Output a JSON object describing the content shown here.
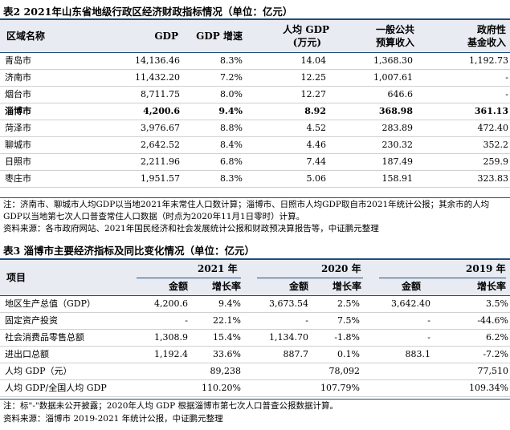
{
  "table1": {
    "title": "表2 2021年山东省地级行政区经济财政指标情况（单位：亿元）",
    "headers": {
      "region": "区域名称",
      "gdp": "GDP",
      "gdp_growth": "GDP 增速",
      "per_capita_line1": "人均 GDP",
      "per_capita_line2": "(万元)",
      "public_budget_line1": "一般公共",
      "public_budget_line2": "预算收入",
      "fund_line1": "政府性",
      "fund_line2": "基金收入"
    },
    "rows": [
      {
        "name": "青岛市",
        "gdp": "14,136.46",
        "growth": "8.3%",
        "per_capita": "14.04",
        "budget": "1,368.30",
        "fund": "1,192.73"
      },
      {
        "name": "济南市",
        "gdp": "11,432.20",
        "growth": "7.2%",
        "per_capita": "12.25",
        "budget": "1,007.61",
        "fund": "-"
      },
      {
        "name": "烟台市",
        "gdp": "8,711.75",
        "growth": "8.0%",
        "per_capita": "12.27",
        "budget": "646.6",
        "fund": "-"
      },
      {
        "name": "淄博市",
        "gdp": "4,200.6",
        "growth": "9.4%",
        "per_capita": "8.92",
        "budget": "368.98",
        "fund": "361.13"
      },
      {
        "name": "菏泽市",
        "gdp": "3,976.67",
        "growth": "8.8%",
        "per_capita": "4.52",
        "budget": "283.89",
        "fund": "472.40"
      },
      {
        "name": "聊城市",
        "gdp": "2,642.52",
        "growth": "8.4%",
        "per_capita": "4.46",
        "budget": "230.32",
        "fund": "352.2"
      },
      {
        "name": "日照市",
        "gdp": "2,211.96",
        "growth": "6.8%",
        "per_capita": "7.44",
        "budget": "187.49",
        "fund": "259.9"
      },
      {
        "name": "枣庄市",
        "gdp": "1,951.57",
        "growth": "8.3%",
        "per_capita": "5.06",
        "budget": "158.91",
        "fund": "323.83"
      }
    ],
    "note": "注：济南市、聊城市人均GDP以当地2021年末常住人口数计算；淄博市、日照市人均GDP取自市2021年统计公报；其余市的人均GDP以当地第七次人口普查常住人口数据（时点为2020年11月1日零时）计算。",
    "source": "资料来源：各市政府网站、2021年国民经济和社会发展统计公报和财政预决算报告等，中证鹏元整理"
  },
  "table2": {
    "title": "表3 淄博市主要经济指标及同比变化情况（单位：亿元）",
    "headers": {
      "item": "项目",
      "years": [
        "2021 年",
        "2020 年",
        "2019 年"
      ],
      "amount": "金额",
      "growth": "增长率"
    },
    "rows": [
      {
        "name": "地区生产总值（GDP）",
        "a2021": "4,200.6",
        "g2021": "9.4%",
        "a2020": "3,673.54",
        "g2020": "2.5%",
        "a2019": "3,642.40",
        "g2019": "3.5%"
      },
      {
        "name": "固定资产投资",
        "a2021": "-",
        "g2021": "22.1%",
        "a2020": "-",
        "g2020": "7.5%",
        "a2019": "-",
        "g2019": "-44.6%"
      },
      {
        "name": "社会消费品零售总额",
        "a2021": "1,308.9",
        "g2021": "15.4%",
        "a2020": "1,134.70",
        "g2020": "-1.8%",
        "a2019": "-",
        "g2019": "6.2%"
      },
      {
        "name": "进出口总额",
        "a2021": "1,192.4",
        "g2021": "33.6%",
        "a2020": "887.7",
        "g2020": "0.1%",
        "a2019": "883.1",
        "g2019": "-7.2%"
      },
      {
        "name": "人均 GDP（元）",
        "a2021": "",
        "g2021": "89,238",
        "a2020": "",
        "g2020": "78,092",
        "a2019": "",
        "g2019": "77,510"
      },
      {
        "name": "人均 GDP/全国人均 GDP",
        "a2021": "",
        "g2021": "110.20%",
        "a2020": "",
        "g2020": "107.79%",
        "a2019": "",
        "g2019": "109.34%"
      }
    ],
    "note": "注：标\"-\"数据未公开披露；2020年人均 GDP 根据淄博市第七次人口普查公报数据计算。",
    "source": "资料来源：淄博市 2019-2021 年统计公报，中证鹏元整理"
  }
}
